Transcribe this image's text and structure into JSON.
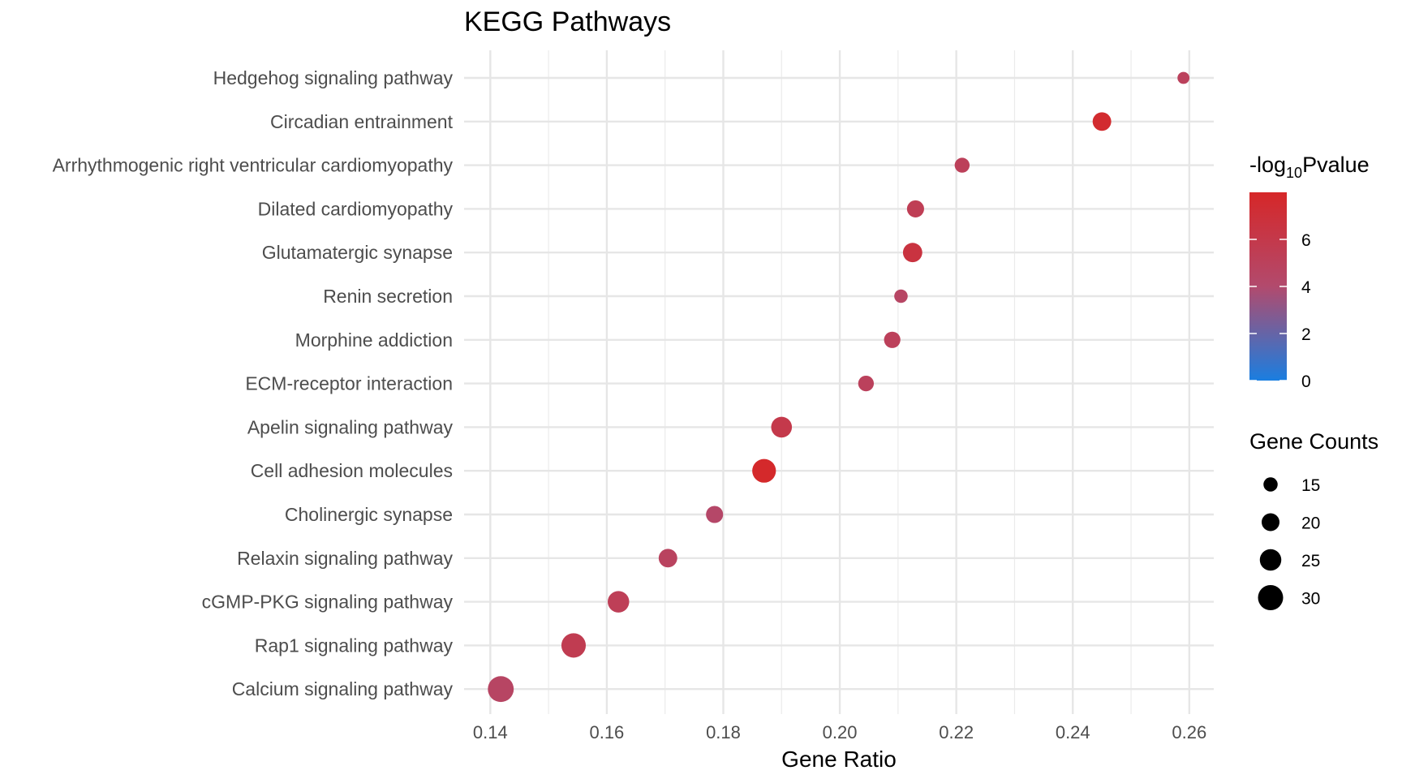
{
  "chart_data": {
    "type": "scatter",
    "title": "KEGG Pathways",
    "xlabel": "Gene Ratio",
    "ylabel": "",
    "xlim": [
      0.1355,
      0.2642
    ],
    "x_ticks": [
      0.14,
      0.16,
      0.18,
      0.2,
      0.22,
      0.24,
      0.26
    ],
    "x_tick_labels": [
      "0.14",
      "0.16",
      "0.18",
      "0.20",
      "0.22",
      "0.24",
      "0.26"
    ],
    "grid": true,
    "categories": [
      "Hedgehog signaling pathway",
      "Circadian entrainment",
      "Arrhythmogenic right ventricular cardiomyopathy",
      "Dilated cardiomyopathy",
      "Glutamatergic synapse",
      "Renin secretion",
      "Morphine addiction",
      "ECM-receptor interaction",
      "Apelin signaling pathway",
      "Cell adhesion molecules",
      "Cholinergic synapse",
      "Relaxin signaling pathway",
      "cGMP-PKG signaling pathway",
      "Rap1 signaling pathway",
      "Calcium signaling pathway"
    ],
    "points": [
      {
        "pathway": "Hedgehog signaling pathway",
        "gene_ratio": 0.259,
        "neg_log10_p": 5.0,
        "gene_count": 12
      },
      {
        "pathway": "Circadian entrainment",
        "gene_ratio": 0.245,
        "neg_log10_p": 7.6,
        "gene_count": 21
      },
      {
        "pathway": "Arrhythmogenic right ventricular cardiomyopathy",
        "gene_ratio": 0.221,
        "neg_log10_p": 5.1,
        "gene_count": 16
      },
      {
        "pathway": "Dilated cardiomyopathy",
        "gene_ratio": 0.213,
        "neg_log10_p": 5.4,
        "gene_count": 19
      },
      {
        "pathway": "Glutamatergic synapse",
        "gene_ratio": 0.2125,
        "neg_log10_p": 6.6,
        "gene_count": 22
      },
      {
        "pathway": "Renin secretion",
        "gene_ratio": 0.2105,
        "neg_log10_p": 4.5,
        "gene_count": 14
      },
      {
        "pathway": "Morphine addiction",
        "gene_ratio": 0.209,
        "neg_log10_p": 5.1,
        "gene_count": 18
      },
      {
        "pathway": "ECM-receptor interaction",
        "gene_ratio": 0.2045,
        "neg_log10_p": 5.0,
        "gene_count": 17
      },
      {
        "pathway": "Apelin signaling pathway",
        "gene_ratio": 0.19,
        "neg_log10_p": 6.0,
        "gene_count": 24
      },
      {
        "pathway": "Cell adhesion molecules",
        "gene_ratio": 0.187,
        "neg_log10_p": 7.8,
        "gene_count": 28
      },
      {
        "pathway": "Cholinergic synapse",
        "gene_ratio": 0.1785,
        "neg_log10_p": 4.3,
        "gene_count": 19
      },
      {
        "pathway": "Relaxin signaling pathway",
        "gene_ratio": 0.1705,
        "neg_log10_p": 4.8,
        "gene_count": 21
      },
      {
        "pathway": "cGMP-PKG signaling pathway",
        "gene_ratio": 0.162,
        "neg_log10_p": 5.3,
        "gene_count": 25
      },
      {
        "pathway": "Rap1 signaling pathway",
        "gene_ratio": 0.1543,
        "neg_log10_p": 5.6,
        "gene_count": 29
      },
      {
        "pathway": "Calcium signaling pathway",
        "gene_ratio": 0.1418,
        "neg_log10_p": 4.6,
        "gene_count": 31
      }
    ],
    "color_legend": {
      "title_prefix": "-log",
      "title_subscript": "10",
      "title_suffix": "Pvalue",
      "range": [
        0,
        8
      ],
      "ticks": [
        0,
        2,
        4,
        6
      ],
      "tick_labels": [
        "0",
        "2",
        "4",
        "6"
      ],
      "low_color": "#1a7ee0",
      "mid_color": "#b24a6d",
      "high_color": "#d62728"
    },
    "size_legend": {
      "title": "Gene Counts",
      "values": [
        15,
        20,
        25,
        30
      ],
      "labels": [
        "15",
        "20",
        "25",
        "30"
      ]
    },
    "legend_position": "right"
  }
}
